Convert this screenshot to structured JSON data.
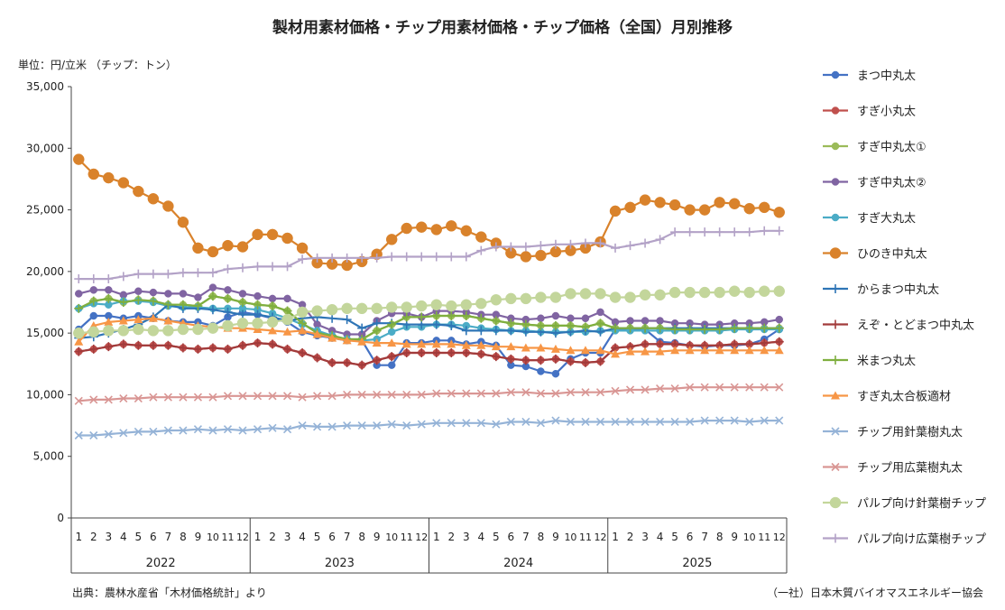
{
  "chart_data": {
    "type": "line",
    "title": "製材用素材価格・チップ用素材価格・チップ価格（全国）月別推移",
    "unit_label": "単位：円/立米 （チップ：トン）",
    "source": "出典：農林水産省「木材価格統計」より",
    "credit": "（一社）日本木質バイオマスエネルギー協会",
    "ylim": [
      0,
      35000
    ],
    "yticks": [
      0,
      5000,
      10000,
      15000,
      20000,
      25000,
      30000,
      35000
    ],
    "ytick_labels": [
      "0",
      "5,000",
      "10,000",
      "15,000",
      "20,000",
      "25,000",
      "30,000",
      "35,000"
    ],
    "month_labels": [
      "1",
      "2",
      "3",
      "4",
      "5",
      "6",
      "7",
      "8",
      "9",
      "10",
      "11",
      "12"
    ],
    "years": [
      "2022",
      "2023",
      "2024",
      "2025"
    ],
    "grid": false,
    "legend_position": "right",
    "series": [
      {
        "name": "まつ中丸太",
        "color": "#4472C4",
        "marker": "circle",
        "size": 4,
        "values": [
          15300,
          16400,
          16400,
          16200,
          16400,
          16200,
          16000,
          15900,
          15900,
          15600,
          16300,
          16700,
          16500,
          16200,
          15900,
          15100,
          14800,
          14600,
          14400,
          14400,
          12400,
          12400,
          14200,
          14200,
          14400,
          14400,
          14100,
          14300,
          14000,
          12400,
          12300,
          11900,
          11700,
          12900,
          13400,
          13400,
          15300,
          15300,
          15300,
          14300,
          14200,
          14000,
          13900,
          14000,
          14000,
          14100,
          14500,
          15300
        ]
      },
      {
        "name": "すぎ小丸太",
        "color": "#C0504D",
        "marker": "circle",
        "size": 4,
        "values": [
          13500,
          13700,
          13900,
          14100,
          14000,
          14000,
          14000,
          13800,
          13700,
          13800,
          13700,
          14000,
          14200,
          14100,
          13700,
          13400,
          13000,
          12600,
          12600,
          12400,
          12800,
          13100,
          13400,
          13400,
          13400,
          13400,
          13400,
          13300,
          13100,
          12900,
          12800,
          12800,
          12900,
          12700,
          12600,
          12700,
          13800,
          13900,
          14100,
          14100,
          14100,
          14000,
          14000,
          14000,
          14100,
          14100,
          14200,
          14300
        ]
      },
      {
        "name": "すぎ中丸太①",
        "color": "#9BBB59",
        "marker": "circle",
        "size": 4,
        "values": [
          17000,
          17600,
          17800,
          17500,
          17700,
          17600,
          17300,
          17300,
          17200,
          18000,
          17800,
          17500,
          17300,
          17200,
          16800,
          15800,
          15000,
          14800,
          14500,
          14500,
          15200,
          15700,
          16300,
          16300,
          16400,
          16400,
          16400,
          16200,
          16000,
          15800,
          15700,
          15600,
          15600,
          15600,
          15500,
          15800,
          15400,
          15400,
          15400,
          15400,
          15300,
          15300,
          15300,
          15300,
          15400,
          15400,
          15400,
          15400
        ]
      },
      {
        "name": "すぎ中丸太②",
        "color": "#8064A2",
        "marker": "circle",
        "size": 4,
        "values": [
          18200,
          18500,
          18500,
          18100,
          18400,
          18300,
          18200,
          18200,
          17900,
          18700,
          18500,
          18200,
          18000,
          17800,
          17800,
          17300,
          15700,
          15200,
          14900,
          14900,
          16000,
          16600,
          16600,
          16300,
          16800,
          16800,
          16700,
          16500,
          16500,
          16200,
          16100,
          16200,
          16400,
          16200,
          16200,
          16700,
          15900,
          16000,
          16000,
          16000,
          15800,
          15800,
          15700,
          15700,
          15800,
          15800,
          15900,
          16100
        ]
      },
      {
        "name": "すぎ大丸太",
        "color": "#4BACC6",
        "marker": "circle",
        "size": 4,
        "values": [
          17000,
          17400,
          17300,
          17600,
          17600,
          17500,
          17200,
          17100,
          17100,
          17000,
          17000,
          17000,
          16900,
          16600,
          16200,
          15700,
          15200,
          14800,
          14500,
          14400,
          14500,
          15100,
          15500,
          15500,
          15700,
          15700,
          15600,
          15400,
          15300,
          15200,
          15200,
          15100,
          15100,
          15100,
          15100,
          15200,
          15200,
          15200,
          15200,
          15200,
          15200,
          15200,
          15200,
          15200,
          15300,
          15300,
          15300,
          15300
        ]
      },
      {
        "name": "ひのき中丸太",
        "color": "#D9822B",
        "marker": "circle",
        "size": 6,
        "values": [
          29100,
          27900,
          27600,
          27200,
          26500,
          25900,
          25300,
          24000,
          21900,
          21600,
          22100,
          22000,
          23000,
          23000,
          22700,
          21900,
          20700,
          20600,
          20500,
          20800,
          21400,
          22600,
          23500,
          23600,
          23400,
          23700,
          23300,
          22800,
          22300,
          21500,
          21200,
          21300,
          21600,
          21700,
          21900,
          22400,
          24900,
          25200,
          25800,
          25600,
          25400,
          25000,
          25000,
          25600,
          25500,
          25100,
          25200,
          24800
        ]
      },
      {
        "name": "からまつ中丸太",
        "color": "#2E75B6",
        "marker": "plus",
        "size": 5,
        "values": [
          14600,
          14700,
          15000,
          15300,
          15700,
          16300,
          17300,
          17000,
          17000,
          16900,
          16700,
          16500,
          16500,
          16300,
          16000,
          16200,
          16300,
          16200,
          16100,
          15400,
          15800,
          15800,
          15700,
          15700,
          15700,
          15600,
          15200,
          15200,
          15200,
          15200,
          15100,
          15100,
          15000,
          15100,
          15200,
          15100,
          15400,
          15400,
          15400,
          15400,
          15400,
          15400,
          15400,
          15400,
          15400,
          15400,
          15400,
          15400
        ]
      },
      {
        "name": "えぞ・とどまつ中丸太",
        "color": "#A23B3B",
        "marker": "plus",
        "size": 5,
        "values": [
          13500,
          13700,
          13900,
          14100,
          14000,
          14000,
          14000,
          13800,
          13700,
          13800,
          13700,
          14000,
          14200,
          14100,
          13700,
          13400,
          13000,
          12600,
          12600,
          12400,
          12800,
          13100,
          13400,
          13400,
          13400,
          13400,
          13400,
          13300,
          13100,
          12900,
          12800,
          12800,
          12900,
          12700,
          12600,
          12700,
          13800,
          13900,
          14100,
          14100,
          14100,
          14000,
          14000,
          14000,
          14100,
          14100,
          14200,
          14300
        ]
      },
      {
        "name": "米まつ丸太",
        "color": "#7FAF3F",
        "marker": "plus",
        "size": 5,
        "values": [
          17000,
          17600,
          17800,
          17500,
          17700,
          17600,
          17300,
          17300,
          17200,
          18000,
          17800,
          17500,
          17300,
          17200,
          16800,
          15800,
          15000,
          14800,
          14500,
          14500,
          15200,
          15700,
          16300,
          16300,
          16400,
          16400,
          16400,
          16200,
          16000,
          15800,
          15700,
          15600,
          15600,
          15600,
          15500,
          15800,
          15400,
          15400,
          15400,
          15400,
          15300,
          15300,
          15300,
          15300,
          15400,
          15400,
          15400,
          15400
        ]
      },
      {
        "name": "すぎ丸太合板適材",
        "color": "#F79646",
        "marker": "triangle",
        "size": 5,
        "values": [
          14300,
          15600,
          15900,
          16000,
          16100,
          16200,
          16000,
          15800,
          15600,
          15500,
          15400,
          15400,
          15300,
          15200,
          15100,
          15200,
          14900,
          14600,
          14400,
          14300,
          14200,
          14200,
          14100,
          14100,
          14100,
          14100,
          14000,
          14000,
          13900,
          13900,
          13800,
          13800,
          13700,
          13600,
          13600,
          13600,
          13300,
          13500,
          13500,
          13500,
          13600,
          13600,
          13600,
          13600,
          13600,
          13600,
          13600,
          13600
        ]
      },
      {
        "name": "チップ用針葉樹丸太",
        "color": "#95B3D7",
        "marker": "x",
        "size": 4,
        "values": [
          6700,
          6700,
          6800,
          6900,
          7000,
          7000,
          7100,
          7100,
          7200,
          7100,
          7200,
          7100,
          7200,
          7300,
          7200,
          7500,
          7400,
          7400,
          7500,
          7500,
          7500,
          7600,
          7500,
          7600,
          7700,
          7700,
          7700,
          7700,
          7600,
          7800,
          7800,
          7700,
          7900,
          7800,
          7800,
          7800,
          7800,
          7800,
          7800,
          7800,
          7800,
          7800,
          7900,
          7900,
          7900,
          7800,
          7900,
          7900
        ]
      },
      {
        "name": "チップ用広葉樹丸太",
        "color": "#D99694",
        "marker": "x",
        "size": 4,
        "values": [
          9500,
          9600,
          9600,
          9700,
          9700,
          9800,
          9800,
          9800,
          9800,
          9800,
          9900,
          9900,
          9900,
          9900,
          9900,
          9800,
          9900,
          9900,
          10000,
          10000,
          10000,
          10000,
          10000,
          10000,
          10100,
          10100,
          10100,
          10100,
          10100,
          10200,
          10200,
          10100,
          10100,
          10200,
          10200,
          10200,
          10300,
          10400,
          10400,
          10500,
          10500,
          10600,
          10600,
          10600,
          10600,
          10600,
          10600,
          10600
        ]
      },
      {
        "name": "パルプ向け針葉樹チップ",
        "color": "#C3D69B",
        "marker": "circle",
        "size": 6,
        "values": [
          15000,
          15100,
          15200,
          15200,
          15300,
          15200,
          15200,
          15300,
          15300,
          15400,
          15600,
          15800,
          15800,
          15900,
          16100,
          16700,
          16800,
          16900,
          17000,
          17000,
          17000,
          17100,
          17100,
          17200,
          17300,
          17200,
          17300,
          17400,
          17700,
          17800,
          17800,
          17900,
          17900,
          18200,
          18200,
          18200,
          17900,
          17900,
          18100,
          18100,
          18300,
          18300,
          18300,
          18300,
          18400,
          18300,
          18400,
          18400
        ]
      },
      {
        "name": "パルプ向け広葉樹チップ",
        "color": "#B3A2C7",
        "marker": "plus",
        "size": 5,
        "values": [
          19400,
          19400,
          19400,
          19600,
          19800,
          19800,
          19800,
          19900,
          19900,
          19900,
          20200,
          20300,
          20400,
          20400,
          20400,
          21000,
          21100,
          21100,
          21100,
          21100,
          21100,
          21200,
          21200,
          21200,
          21200,
          21200,
          21200,
          21700,
          22000,
          22000,
          22000,
          22100,
          22200,
          22200,
          22300,
          22300,
          21900,
          22100,
          22300,
          22600,
          23200,
          23200,
          23200,
          23200,
          23200,
          23200,
          23300,
          23300
        ]
      }
    ]
  }
}
